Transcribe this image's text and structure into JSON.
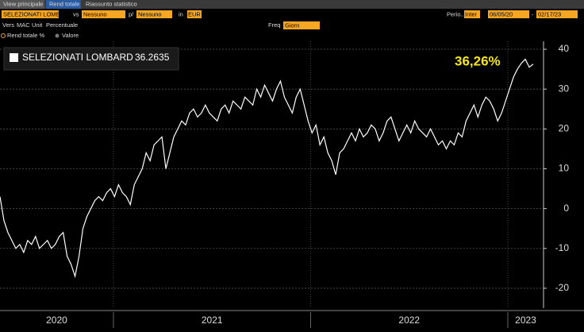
{
  "ui": {
    "tabs": [
      "View principale",
      "Rend totale",
      "Riassunto statistico"
    ],
    "security": "SELEZIONATI LOMBARD",
    "vs_label": "vs",
    "vs_value": "Nessuno",
    "per_label": "p/",
    "per_value": "Nessuno",
    "in_label": "in",
    "currency": "EUR",
    "period_label": "Perio..",
    "period_value": "Inter",
    "start_date": "06/05/20",
    "date_sep": "-",
    "end_date": "02/17/23",
    "vers_label": "Vers",
    "vers_value": "MAC",
    "unit_label": "Unit",
    "unit_value": "Percentuale",
    "freq_label": "Freq",
    "freq_value": "Giorn",
    "mode_selected": "Rend totale %",
    "mode_other": "Valore"
  },
  "chart_data": {
    "type": "line",
    "annotation": "36,26%",
    "x_labels": [
      "2020",
      "2021",
      "2022",
      "2023"
    ],
    "series": [
      {
        "name": "SELEZIONATI LOMBARD",
        "color": "#ffffff",
        "values": [
          3,
          -3,
          -6,
          -8,
          -10,
          -9,
          -11,
          -8,
          -9,
          -7,
          -10,
          -9,
          -8,
          -10,
          -9,
          -7,
          -6,
          -12,
          -14,
          -17,
          -12,
          -5,
          -2,
          0,
          2,
          3,
          2,
          4,
          5,
          3,
          6,
          4,
          3,
          1,
          6,
          8,
          10,
          14,
          12,
          16,
          17,
          18,
          10,
          14,
          18,
          20,
          22,
          21,
          24,
          25,
          23,
          24,
          26,
          24,
          23,
          22,
          25,
          26,
          24,
          27,
          26,
          25,
          28,
          27,
          26,
          30,
          28,
          31,
          29,
          27,
          30,
          32,
          28,
          26,
          24,
          28,
          30,
          26,
          22,
          19,
          21,
          16,
          18,
          14,
          12,
          8.5,
          14,
          15,
          17,
          19,
          17,
          20,
          18,
          19,
          21,
          20,
          17,
          19,
          22,
          23,
          20,
          17,
          19,
          21,
          19,
          22,
          20,
          19,
          18,
          20,
          18,
          16,
          17,
          15,
          17,
          16,
          19,
          18,
          22,
          24,
          26,
          23,
          26,
          28,
          27,
          25,
          22,
          24,
          27,
          30,
          33,
          35,
          36.5,
          37.5,
          35.5,
          36.2635
        ]
      }
    ],
    "ylim": [
      -25,
      42
    ],
    "yticks": [
      -20,
      -10,
      0,
      10,
      20,
      30,
      40
    ],
    "grid": true
  }
}
